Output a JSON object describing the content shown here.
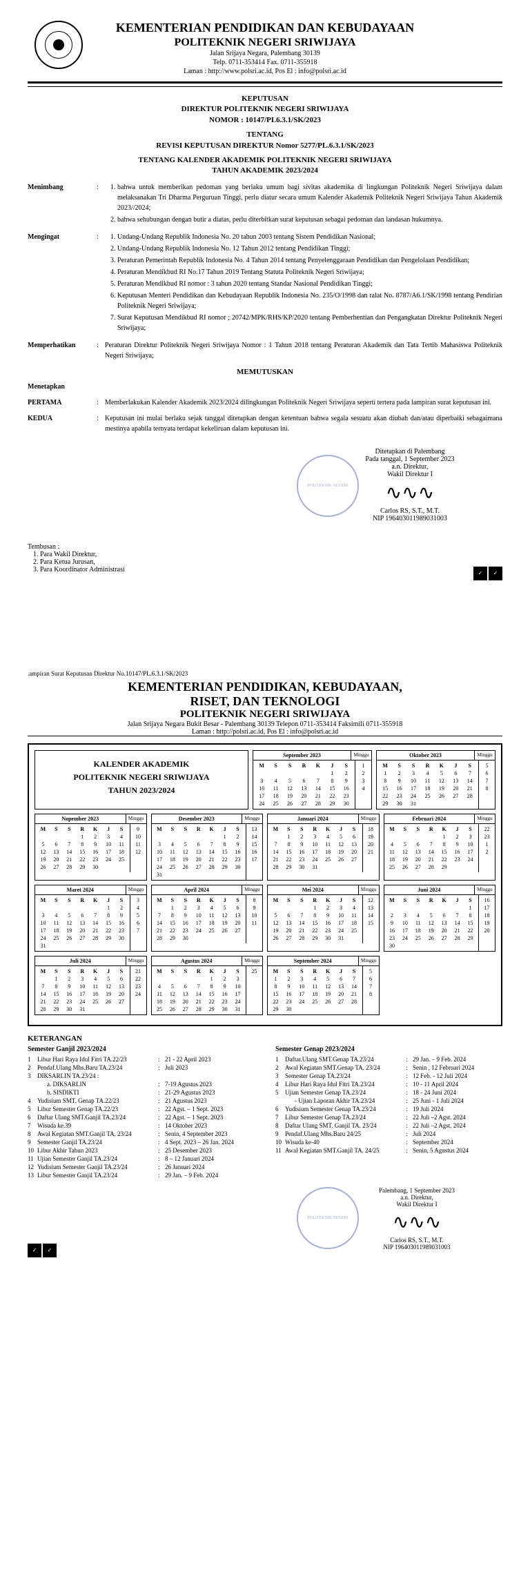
{
  "page1": {
    "ministry": "KEMENTERIAN PENDIDIKAN DAN KEBUDAYAAN",
    "institution": "POLITEKNIK NEGERI SRIWIJAYA",
    "address1": "Jalan Srijaya Negara, Palembang 30139",
    "address2": "Telp. 0711-353414 Fax. 0711-355918",
    "address3": "Laman : http://www.polsri.ac.id, Pos El : info@polsri.ac.id",
    "keputusan_line1": "KEPUTUSAN",
    "keputusan_line2": "DIREKTUR POLITEKNIK NEGERI SRIWIJAYA",
    "keputusan_line3": "NOMOR : 10147/PL6.3.1/SK/2023",
    "tentang": "TENTANG",
    "revisi": "REVISI KEPUTUSAN DIREKTUR Nomor 5277/PL.6.3.1/SK/2023",
    "subjek1": "TENTANG KALENDER AKADEMIK POLITEKNIK NEGERI SRIWIJAYA",
    "subjek2": "TAHUN AKADEMIK 2023/2024",
    "menimbang_label": "Menimbang",
    "menimbang": [
      "bahwa untuk memberikan pedoman yang berlaku umum bagi sivitas akademika di lingkungan Politeknik Negeri Sriwijaya dalam melaksanakan Tri Dharma Perguruan Tinggi, perlu diatur secara umum Kalender Akademik Politeknik Negeri Sriwijaya Tahun Akademik 2023//2024;",
      "bahwa sehubungan dengan butir a diatas, perlu diterbitkan surat keputusan sebagai pedoman dan landasan hukumnya."
    ],
    "mengingat_label": "Mengingat",
    "mengingat": [
      "Undang-Undang Republik Indonesia No. 20 tahun 2003 tentang Sistem Pendidikan Nasional;",
      "Undang-Undang Republik Indonesia No. 12 Tahun 2012 tentang Pendidikan Tinggi;",
      "Peraturan Pemerintah Republik Indonesia No. 4 Tahun 2014 tentang Penyelenggaraan Pendidikan dan Pengelolaan Pendidikan;",
      "Peraturan Mendikbud RI No.17 Tahun 2019 Tentang Statuta Politeknik Negeri Sriwijaya;",
      "Peraturan Mendikbud RI nomor : 3 tahun 2020 tentang Standar Nasional Pendidikan Tinggi;",
      "Keputusan Menteri Pendidikan dan Kebudayaan Republik Indonesia No. 235/O/1998 dan ralat No. 8787/A6.1/SK/1998 tentang Pendirian Politeknik Negeri Sriwijaya;",
      "Surat Keputusan Mendikbud RI nomor ; 20742/MPK/RHS/KP/2020 tentang Pemberhentian dan Pengangkatan Direktur Politeknik Negeri Sriwijaya;"
    ],
    "memperhatikan_label": "Memperhatikan",
    "memperhatikan": "Peraturan Direktur Politeknik Negeri Sriwijaya Nomor : 1 Tahun 2018 tentang Peraturan Akademik dan Tata Tertib Mahasiswa Politeknik Negeri Sriwijaya;",
    "memutuskan": "MEMUTUSKAN",
    "menetapkan": "Menetapkan",
    "pertama_label": "PERTAMA",
    "pertama": "Memberlakukan Kalender Akademik 2023/2024 dilingkungan Politeknik Negeri Sriwijaya seperti tertera pada lampiran surat keputusan ini.",
    "kedua_label": "KEDUA",
    "kedua": "Keputusan ini mulai berlaku sejak tanggal ditetapkan dengan ketentuan bahwa segala sesuatu akan diubah dan/atau diperbaiki sebagaimana mestinya apabila ternyata terdapat kekeliruan dalam keputusan ini.",
    "ditetapkan": "Ditetapkan di Palembang",
    "pada_tanggal": "Pada tanggal, 1 September 2023",
    "an_direktur": "a.n. Direktur,",
    "wakil": "Wakil Direktur I",
    "signer": "Carlos RS, S.T., M.T.",
    "nip": "NIP 196403011989031003",
    "tembusan_label": "Tembusan :",
    "tembusan": [
      "Para Wakil Direktur,",
      "Para Ketua Jurusan,",
      "Para Koordinator Administrasi"
    ]
  },
  "page2": {
    "lampiran": ".ampiran Surat Keputusan Direktur No.10147/PL.6.3.1/SK/2023",
    "ministry1": "KEMENTERIAN PENDIDIKAN, KEBUDAYAAN,",
    "ministry2": "RISET, DAN TEKNOLOGI",
    "institution": "POLITEKNIK NEGERI SRIWIJAYA",
    "address1": "Jalan Srijaya Negara Bukit Besar - Palembang 30139 Telepon 0711-353414 Faksimili 0711-355918",
    "address2": "Laman : http://polsri.ac.id,  Pos El : info@polsri.ac.id",
    "cal_title1": "KALENDER AKADEMIK",
    "cal_title2": "POLITEKNIK NEGERI SRIWIJAYA",
    "cal_title3": "TAHUN 2023/2024",
    "day_headers": [
      "M",
      "S",
      "S",
      "R",
      "K",
      "J",
      "S"
    ],
    "minggu_label": "Minggu",
    "months": [
      {
        "name": "September  2023",
        "start": 5,
        "days": 30,
        "weeks": [
          "",
          "1",
          "2",
          "3",
          "4"
        ]
      },
      {
        "name": "Oktober  2023",
        "start": 0,
        "days": 31,
        "weeks": [
          "5",
          "6",
          "7",
          "8",
          ""
        ]
      },
      {
        "name": "Nopember 2023",
        "start": 3,
        "days": 30,
        "weeks": [
          "",
          "9",
          "10",
          "11",
          "12"
        ]
      },
      {
        "name": "Desember 2023",
        "start": 5,
        "days": 31,
        "weeks": [
          "13",
          "14",
          "15",
          "16",
          "17",
          ""
        ]
      },
      {
        "name": "Januari 2024",
        "start": 1,
        "days": 31,
        "weeks": [
          "",
          "18",
          "19",
          "20",
          "21",
          ""
        ]
      },
      {
        "name": "Februari 2024",
        "start": 4,
        "days": 29,
        "weeks": [
          "",
          "22",
          "23",
          "1",
          "2"
        ]
      },
      {
        "name": "Maret 2024",
        "start": 5,
        "days": 31,
        "weeks": [
          "3",
          "4",
          "5",
          "6",
          "7",
          ""
        ]
      },
      {
        "name": "April 2024",
        "start": 1,
        "days": 30,
        "weeks": [
          "",
          "8",
          "9",
          "10",
          "11",
          ""
        ]
      },
      {
        "name": "Mei 2024",
        "start": 3,
        "days": 31,
        "weeks": [
          "",
          "12",
          "13",
          "14",
          "15"
        ]
      },
      {
        "name": "Juni 2024",
        "start": 6,
        "days": 30,
        "weeks": [
          "",
          "16",
          "17",
          "18",
          "19",
          "20"
        ]
      },
      {
        "name": "Juli 2024",
        "start": 1,
        "days": 31,
        "weeks": [
          "",
          "21",
          "22",
          "23",
          "24",
          ""
        ]
      },
      {
        "name": "Agustus 2024",
        "start": 4,
        "days": 31,
        "weeks": [
          "",
          "25",
          "",
          "",
          "",
          ""
        ]
      },
      {
        "name": "September 2024",
        "start": 0,
        "days": 30,
        "weeks": [
          "",
          "5",
          "6",
          "7",
          "8"
        ]
      }
    ],
    "keterangan_title": "KETERANGAN",
    "sem_ganjil_title": "Semester Ganjil 2023/2024",
    "sem_genap_title": "Semester Genap 2023/2024",
    "ganjil": [
      {
        "n": "1",
        "l": "Libur Hari Raya Idul Fitri TA.22/23",
        "d": "21 - 22  April  2023"
      },
      {
        "n": "2",
        "l": "Pendaf.Ulang Mhs.Baru TA.23/24",
        "d": "Juli 2023"
      },
      {
        "n": "3",
        "l": "DIKSARLIN TA.23/24 :",
        "d": ""
      },
      {
        "n": "",
        "l": "a.    DIKSARLIN",
        "d": "7-19 Agustus 2023",
        "sub": true
      },
      {
        "n": "",
        "l": "b.    SISDIKTI",
        "d": "21-29 Agustus 2023",
        "sub": true
      },
      {
        "n": "4",
        "l": "Yudisium SMT. Genap TA.22/23",
        "d": "21 Agustus 2023"
      },
      {
        "n": "5",
        "l": "Libur Semester Genap TA.22/23",
        "d": "22 Agst. – 1 Sept. 2023"
      },
      {
        "n": "6",
        "l": "Daftar Ulang SMT.Ganjil  TA.23/24",
        "d": "22 Agst.  – 1 Sept. 2023"
      },
      {
        "n": "7",
        "l": "Wisuda ke.39",
        "d": "14 Oktober 2023"
      },
      {
        "n": "8",
        "l": "Awal Kegiatan SMT.Ganjil  TA. 23/24",
        "d": "Senin, 4 September 2023"
      },
      {
        "n": "9",
        "l": "Semester Ganjil  TA.23/24",
        "d": "4 Sept. 2023 – 26 Jan. 2024"
      },
      {
        "n": "10",
        "l": "Libur Akhir Tahun 2023",
        "d": "25 Desember 2023"
      },
      {
        "n": "11",
        "l": "Ujian Semester Ganjil TA.23/24",
        "d": "8 – 12 Januari 2024"
      },
      {
        "n": "12",
        "l": "Yudisium Semester Ganjil  TA.23/24",
        "d": "26 Januari 2024"
      },
      {
        "n": "13",
        "l": "Libur Semester Ganjil TA.23/24",
        "d": "29 Jan. – 9 Feb. 2024"
      }
    ],
    "genap": [
      {
        "n": "1",
        "l": "Daftar.Ulang SMT.Genap TA.23/24",
        "d": "29 Jan. – 9 Feb. 2024"
      },
      {
        "n": "2",
        "l": "Awal Kegiatan SMT.Genap  TA. 23/24",
        "d": "Senin , 12 Februari 2024"
      },
      {
        "n": "3",
        "l": "Semester Genap   TA.23/24",
        "d": "12 Feb. - 12 Juli 2024"
      },
      {
        "n": "4",
        "l": "Libur Hari Raya Idul Fitri TA.23/24",
        "d": "10 - 11  April 2024"
      },
      {
        "n": "5",
        "l": "Ujian Semester Genap TA.23/24",
        "d": "18 - 24 Juni 2024"
      },
      {
        "n": "",
        "l": "- Ujian Laporan Akhir TA.23/24",
        "d": "25 Juni - 1 Juli 2024",
        "sub": true
      },
      {
        "n": "6",
        "l": "Yudisium Semester Genap TA.23/24",
        "d": "19 Juli 2024"
      },
      {
        "n": "7",
        "l": "Libur  Semester Genap TA.23/24",
        "d": "22 Juli –2 Agst. 2024"
      },
      {
        "n": "8",
        "l": "Daftar Ulang SMT. Ganjil TA. 23/24",
        "d": "22 Juli –2 Agst. 2024"
      },
      {
        "n": "9",
        "l": "Pendaf.Ulang Mhs.Baru 24/25",
        "d": "Juli 2024"
      },
      {
        "n": "10",
        "l": "Wisuda ke-40",
        "d": "September 2024"
      },
      {
        "n": "11",
        "l": "Awal Kegiatan SMT.Ganjil  TA. 24/25",
        "d": "Senin, 5 Agustus 2024"
      }
    ],
    "sign_place": "Palembang, 1 September 2023",
    "sign_an": "a.n. Direktur,",
    "sign_role": "Wakil Direktur I",
    "sign_name": "Carlos RS, S.T., M.T.",
    "sign_nip": "NIP 196403011989031003"
  }
}
